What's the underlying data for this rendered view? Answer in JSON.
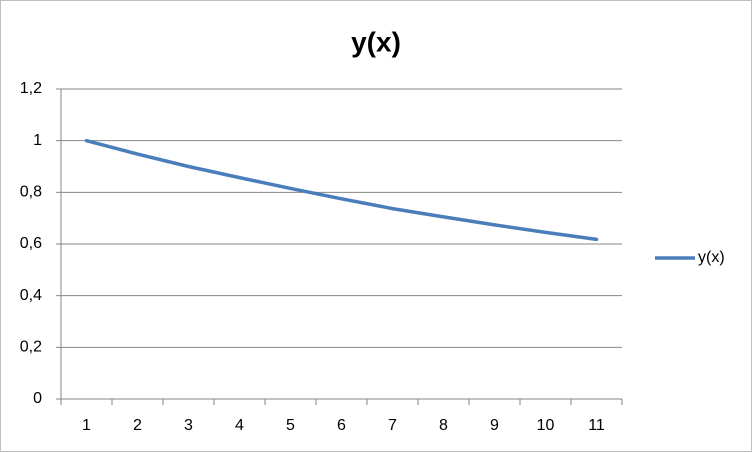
{
  "chart_data": {
    "type": "line",
    "title": "y(x)",
    "categories": [
      "1",
      "2",
      "3",
      "4",
      "5",
      "6",
      "7",
      "8",
      "9",
      "10",
      "11"
    ],
    "series": [
      {
        "name": "y(x)",
        "color": "#4a7ebb",
        "values": [
          1,
          0.948,
          0.9,
          0.857,
          0.815,
          0.775,
          0.737,
          0.705,
          0.674,
          0.645,
          0.618
        ]
      }
    ],
    "ylim": [
      0,
      1.2
    ],
    "yticks": [
      0,
      {
        "value": 0.2,
        "label": "0,2"
      },
      {
        "value": 0.4,
        "label": "0,4"
      },
      {
        "value": 0.6,
        "label": "0,6"
      },
      {
        "value": 0.8,
        "label": "0,8"
      },
      1,
      {
        "value": 1.2,
        "label": "1,2"
      }
    ],
    "grid": true,
    "legend": "right"
  }
}
